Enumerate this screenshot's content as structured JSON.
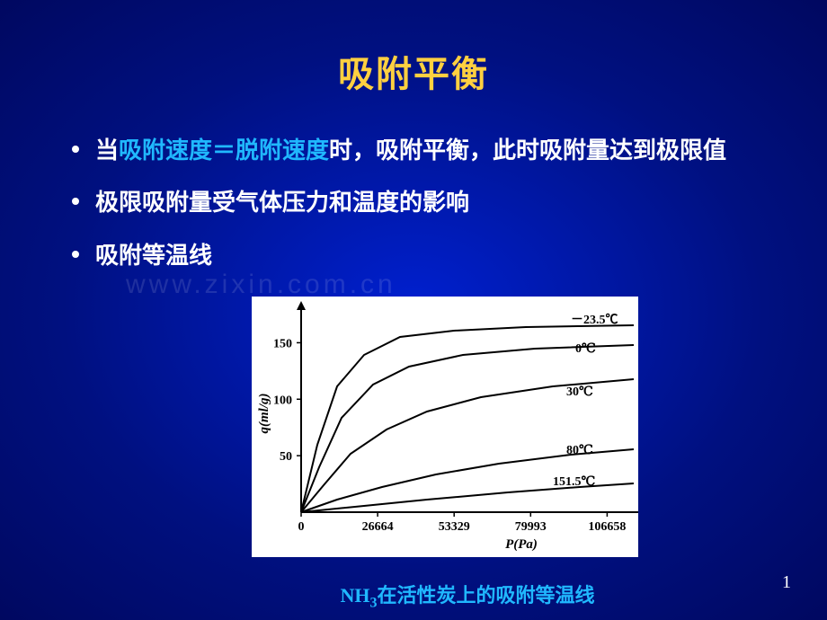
{
  "title": {
    "text": "吸附平衡",
    "color": "#ffd040",
    "fontsize": 40
  },
  "bullets": [
    {
      "pre": "当",
      "hl": "吸附速度＝脱附速度",
      "post": "时，吸附平衡，此时吸附量达到极限值",
      "hl_color": "#20b8ff"
    },
    {
      "pre": "极限吸附量受气体压力和温度的影响",
      "hl": "",
      "post": "",
      "hl_color": "#20b8ff"
    },
    {
      "pre": "吸附等温线",
      "hl": "",
      "post": "",
      "hl_color": "#20b8ff"
    }
  ],
  "chart": {
    "type": "line",
    "background_color": "#ffffff",
    "axis_color": "#000000",
    "line_color": "#000000",
    "line_width": 2,
    "xlabel": "P(Pa)",
    "ylabel": "q(ml/g)",
    "label_fontsize": 14,
    "xlim": [
      0,
      106658
    ],
    "ylim": [
      0,
      175
    ],
    "xticks": [
      0,
      26664,
      53329,
      79993,
      106658
    ],
    "yticks": [
      50,
      100,
      150
    ],
    "series": [
      {
        "label": "－23.5℃",
        "label_xy": [
          340,
          30
        ],
        "points": [
          [
            0,
            240
          ],
          [
            18,
            165
          ],
          [
            40,
            100
          ],
          [
            70,
            65
          ],
          [
            110,
            45
          ],
          [
            170,
            38
          ],
          [
            250,
            34
          ],
          [
            370,
            32
          ]
        ]
      },
      {
        "label": "0℃",
        "label_xy": [
          345,
          62
        ],
        "points": [
          [
            0,
            240
          ],
          [
            20,
            190
          ],
          [
            45,
            135
          ],
          [
            80,
            98
          ],
          [
            120,
            78
          ],
          [
            180,
            65
          ],
          [
            260,
            58
          ],
          [
            370,
            54
          ]
        ]
      },
      {
        "label": "30℃",
        "label_xy": [
          335,
          110
        ],
        "points": [
          [
            0,
            240
          ],
          [
            25,
            210
          ],
          [
            55,
            175
          ],
          [
            95,
            148
          ],
          [
            140,
            128
          ],
          [
            200,
            112
          ],
          [
            280,
            100
          ],
          [
            370,
            92
          ]
        ]
      },
      {
        "label": "80℃",
        "label_xy": [
          335,
          175
        ],
        "points": [
          [
            0,
            240
          ],
          [
            40,
            226
          ],
          [
            90,
            212
          ],
          [
            150,
            198
          ],
          [
            220,
            186
          ],
          [
            300,
            176
          ],
          [
            370,
            170
          ]
        ]
      },
      {
        "label": "151.5℃",
        "label_xy": [
          320,
          210
        ],
        "points": [
          [
            0,
            240
          ],
          [
            60,
            234
          ],
          [
            140,
            226
          ],
          [
            230,
            218
          ],
          [
            310,
            212
          ],
          [
            370,
            208
          ]
        ]
      }
    ]
  },
  "caption": {
    "pre": "NH",
    "sub": "3",
    "post": "在活性炭上的吸附等温线",
    "hl_color": "#20b8ff"
  },
  "watermark": "www.zixin.com.cn",
  "page_number": "1"
}
